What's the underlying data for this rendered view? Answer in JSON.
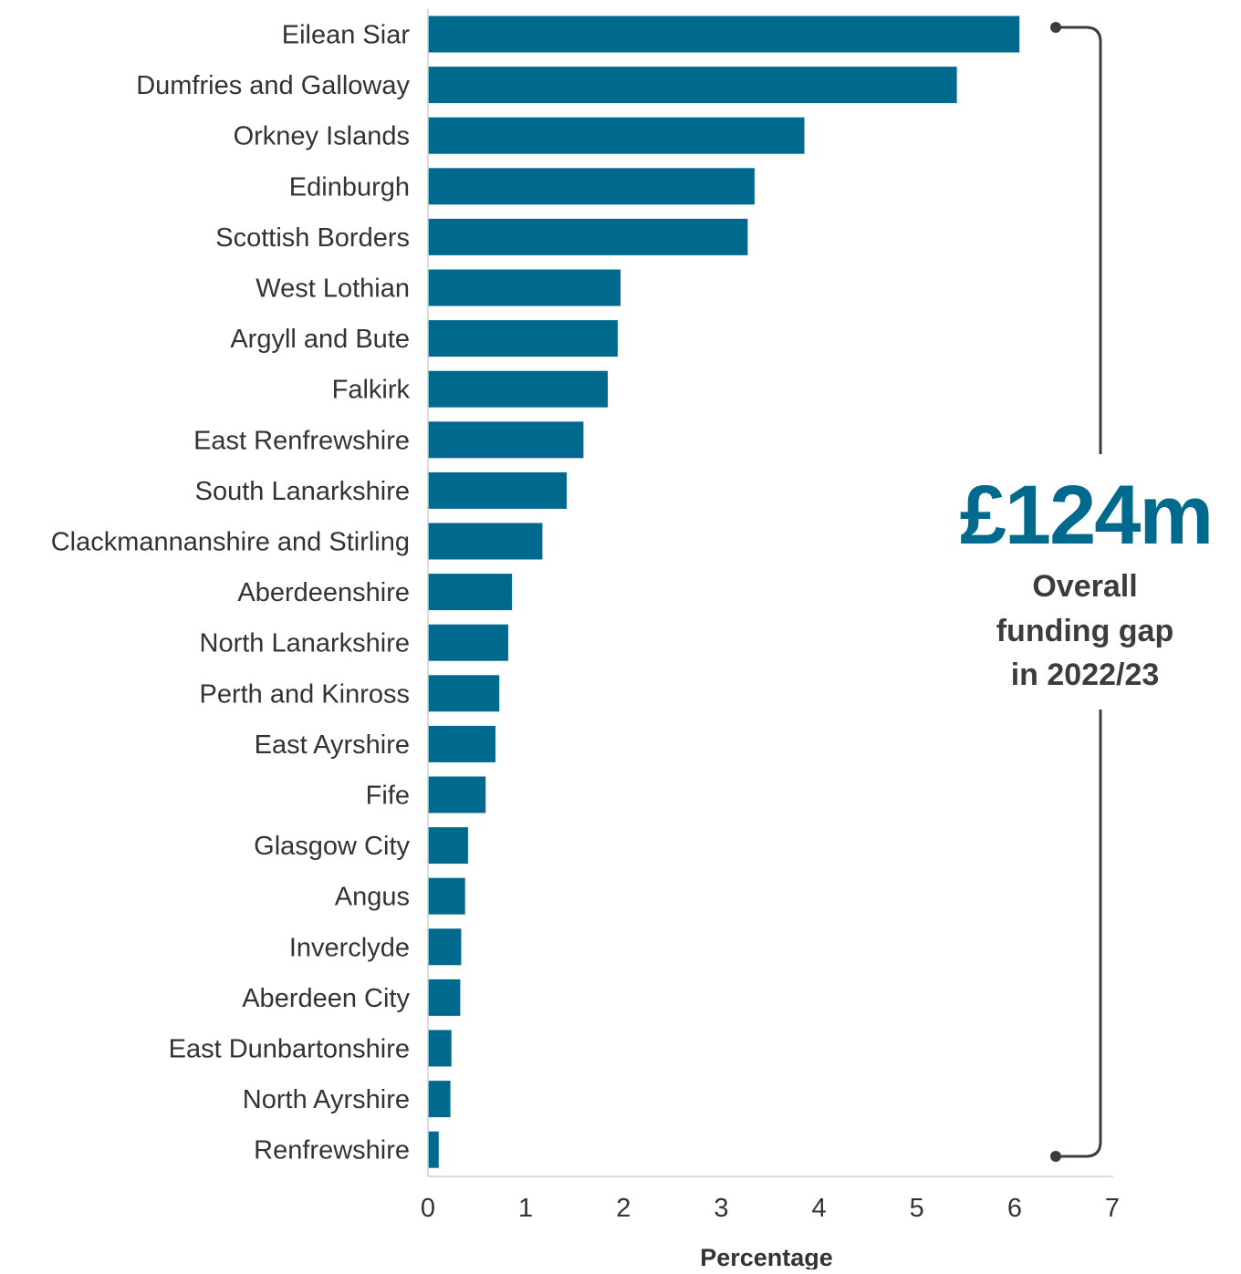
{
  "chart_data": {
    "type": "bar",
    "orientation": "horizontal",
    "categories": [
      "Eilean Siar",
      "Dumfries and Galloway",
      "Orkney Islands",
      "Edinburgh",
      "Scottish Borders",
      "West Lothian",
      "Argyll and Bute",
      "Falkirk",
      "East Renfrewshire",
      "South Lanarkshire",
      "Clackmannanshire and Stirling",
      "Aberdeenshire",
      "North Lanarkshire",
      "Perth and Kinross",
      "East Ayrshire",
      "Fife",
      "Glasgow City",
      "Angus",
      "Inverclyde",
      "Aberdeen City",
      "East Dunbartonshire",
      "North Ayrshire",
      "Renfrewshire"
    ],
    "values": [
      6.05,
      5.41,
      3.85,
      3.34,
      3.27,
      1.97,
      1.94,
      1.84,
      1.59,
      1.42,
      1.17,
      0.86,
      0.82,
      0.73,
      0.69,
      0.59,
      0.41,
      0.38,
      0.34,
      0.33,
      0.24,
      0.23,
      0.11
    ],
    "xlabel": "Percentage",
    "xlim": [
      0,
      7
    ],
    "xticks": [
      "0",
      "1",
      "2",
      "3",
      "4",
      "5",
      "6",
      "7"
    ],
    "grid": false,
    "bar_color": "#006a8e",
    "annotation": {
      "figure": "£124m",
      "lines": [
        "Overall",
        "funding gap",
        "in 2022/23"
      ],
      "figure_color": "#006a8e",
      "text_color": "#3c3c3c"
    }
  }
}
